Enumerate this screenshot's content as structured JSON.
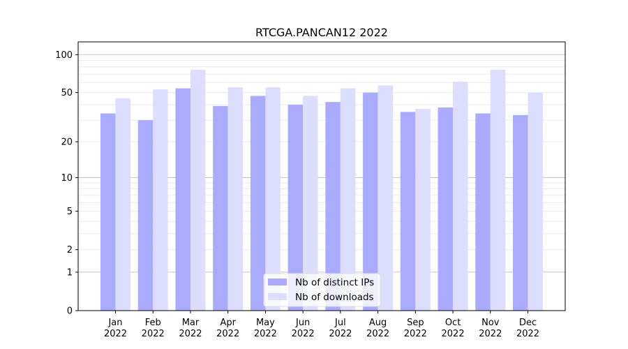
{
  "chart_data": {
    "type": "bar",
    "title": "RTCGA.PANCAN12 2022",
    "xlabel": "",
    "ylabel": "",
    "yscale": "log10(1+y)",
    "ylim": [
      0,
      126
    ],
    "grid": true,
    "legend_position": "bottom-center",
    "categories": [
      "Jan\n2022",
      "Feb\n2022",
      "Mar\n2022",
      "Apr\n2022",
      "May\n2022",
      "Jun\n2022",
      "Jul\n2022",
      "Aug\n2022",
      "Sep\n2022",
      "Oct\n2022",
      "Nov\n2022",
      "Dec\n2022"
    ],
    "category_month": [
      "Jan",
      "Feb",
      "Mar",
      "Apr",
      "May",
      "Jun",
      "Jul",
      "Aug",
      "Sep",
      "Oct",
      "Nov",
      "Dec"
    ],
    "category_year": [
      "2022",
      "2022",
      "2022",
      "2022",
      "2022",
      "2022",
      "2022",
      "2022",
      "2022",
      "2022",
      "2022",
      "2022"
    ],
    "y_ticks": [
      0,
      1,
      2,
      5,
      10,
      20,
      50,
      100
    ],
    "y_tick_labels": [
      "0",
      "1",
      "2",
      "5",
      "10",
      "20",
      "50",
      "100"
    ],
    "series": [
      {
        "name": "Nb of distinct IPs",
        "color": "#aaaaff",
        "values": [
          34,
          30,
          54,
          39,
          47,
          40,
          42,
          50,
          35,
          38,
          34,
          33
        ]
      },
      {
        "name": "Nb of downloads",
        "color": "#ddddff",
        "values": [
          45,
          53,
          76,
          55,
          55,
          47,
          54,
          57,
          37,
          61,
          76,
          50
        ]
      }
    ]
  }
}
